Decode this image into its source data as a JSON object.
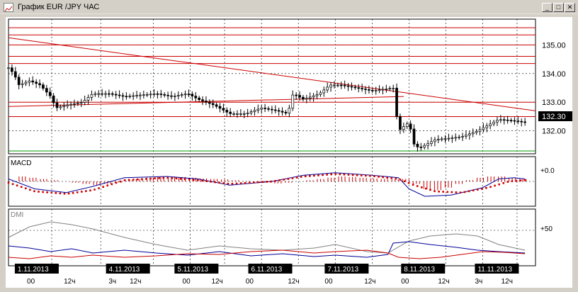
{
  "window": {
    "title": "График EUR /JPY ЧАС",
    "buttons": {
      "minimize": "_",
      "maximize": "□",
      "close": "✕"
    }
  },
  "price_panel": {
    "y_ticks": [
      "135.00",
      "134.00",
      "133.00",
      "132.00"
    ],
    "current_price": "132.30"
  },
  "macd_panel": {
    "label": "MACD",
    "y_tick": "+0.0"
  },
  "dmi_panel": {
    "label": "DMI",
    "y_tick": "+50"
  },
  "time_axis": {
    "dates": [
      "1.11.2013",
      "4.11.2013",
      "5.11.2013",
      "6.11.2013",
      "7.11.2013",
      "8.11.2013",
      "11.11.2013"
    ],
    "hours": [
      "00",
      "12ч",
      "3ч",
      "12ч",
      "00",
      "12ч",
      "00",
      "12ч",
      "00",
      "12ч",
      "00",
      "12ч",
      "3ч",
      "12ч"
    ]
  },
  "colors": {
    "line_red": "#cc0000",
    "line_green": "#009900",
    "candle": "#000000",
    "macd_dots": "#cc0000",
    "dmi_blue": "#000099",
    "dmi_red": "#cc0000",
    "dmi_gray": "#808080",
    "grid": "#000000"
  },
  "chart_data": [
    {
      "type": "candlestick",
      "title": "",
      "ylim": [
        131.2,
        135.9
      ],
      "horizontal_levels": [
        135.6,
        135.35,
        135.0,
        134.6,
        134.35,
        133.0,
        132.5,
        131.3
      ],
      "trendlines": [
        {
          "from": [
            0,
            135.25
          ],
          "to": [
            1,
            132.7
          ]
        },
        {
          "from": [
            0,
            132.85
          ],
          "to": [
            0.75,
            133.2
          ]
        }
      ],
      "close_series": [
        [
          0.0,
          134.2
        ],
        [
          0.01,
          134.0
        ],
        [
          0.02,
          133.6
        ],
        [
          0.04,
          133.75
        ],
        [
          0.06,
          133.6
        ],
        [
          0.08,
          133.2
        ],
        [
          0.09,
          132.8
        ],
        [
          0.11,
          132.9
        ],
        [
          0.14,
          133.0
        ],
        [
          0.16,
          133.3
        ],
        [
          0.19,
          133.3
        ],
        [
          0.22,
          133.2
        ],
        [
          0.25,
          133.25
        ],
        [
          0.28,
          133.3
        ],
        [
          0.31,
          133.2
        ],
        [
          0.34,
          133.3
        ],
        [
          0.36,
          133.1
        ],
        [
          0.39,
          132.9
        ],
        [
          0.42,
          132.6
        ],
        [
          0.45,
          132.6
        ],
        [
          0.48,
          132.8
        ],
        [
          0.51,
          132.7
        ],
        [
          0.53,
          132.6
        ],
        [
          0.54,
          133.3
        ],
        [
          0.56,
          133.1
        ],
        [
          0.59,
          133.3
        ],
        [
          0.61,
          133.6
        ],
        [
          0.63,
          133.6
        ],
        [
          0.66,
          133.5
        ],
        [
          0.69,
          133.4
        ],
        [
          0.71,
          133.45
        ],
        [
          0.73,
          133.5
        ],
        [
          0.74,
          132.0
        ],
        [
          0.76,
          132.3
        ],
        [
          0.77,
          131.5
        ],
        [
          0.78,
          131.4
        ],
        [
          0.81,
          131.7
        ],
        [
          0.84,
          131.75
        ],
        [
          0.86,
          131.8
        ],
        [
          0.89,
          132.0
        ],
        [
          0.91,
          132.2
        ],
        [
          0.93,
          132.4
        ],
        [
          0.96,
          132.35
        ],
        [
          0.98,
          132.3
        ]
      ]
    },
    {
      "type": "line",
      "title": "MACD",
      "ylim": [
        -1,
        1
      ],
      "series": [
        {
          "values": [
            [
              0.0,
              0.1
            ],
            [
              0.05,
              -0.3
            ],
            [
              0.11,
              -0.45
            ],
            [
              0.16,
              -0.2
            ],
            [
              0.22,
              0.15
            ],
            [
              0.3,
              0.2
            ],
            [
              0.36,
              0.1
            ],
            [
              0.42,
              -0.15
            ],
            [
              0.5,
              0.0
            ],
            [
              0.56,
              0.25
            ],
            [
              0.62,
              0.35
            ],
            [
              0.69,
              0.25
            ],
            [
              0.74,
              0.15
            ],
            [
              0.76,
              -0.3
            ],
            [
              0.79,
              -0.6
            ],
            [
              0.84,
              -0.55
            ],
            [
              0.9,
              -0.25
            ],
            [
              0.93,
              0.1
            ],
            [
              0.96,
              0.15
            ],
            [
              0.98,
              0.1
            ]
          ]
        },
        {
          "values": [
            [
              0.0,
              -0.05
            ],
            [
              0.05,
              -0.4
            ],
            [
              0.11,
              -0.5
            ],
            [
              0.16,
              -0.35
            ],
            [
              0.22,
              0.05
            ],
            [
              0.3,
              0.15
            ],
            [
              0.36,
              0.05
            ],
            [
              0.42,
              -0.1
            ],
            [
              0.5,
              0.0
            ],
            [
              0.56,
              0.2
            ],
            [
              0.62,
              0.3
            ],
            [
              0.69,
              0.22
            ],
            [
              0.74,
              0.1
            ],
            [
              0.77,
              -0.15
            ],
            [
              0.81,
              -0.4
            ],
            [
              0.86,
              -0.45
            ],
            [
              0.91,
              -0.25
            ],
            [
              0.95,
              0.0
            ],
            [
              0.98,
              0.05
            ]
          ]
        }
      ],
      "histogram": [
        0.2,
        0.15,
        0.1,
        0.05,
        0.0,
        -0.05,
        -0.1,
        -0.15,
        -0.1,
        -0.05,
        0.05,
        0.1,
        0.15,
        0.2,
        0.2,
        0.18,
        0.15,
        0.12,
        0.1,
        0.08,
        0.05,
        0.02,
        -0.02,
        -0.05,
        -0.08,
        -0.05,
        0.0,
        0.05,
        0.1,
        0.15,
        0.2,
        0.18,
        0.15,
        0.12,
        0.1,
        0.08,
        0.1,
        -0.1,
        -0.3,
        -0.35,
        -0.25,
        -0.1,
        0.05,
        0.15,
        0.2,
        0.2,
        0.15,
        0.1
      ]
    },
    {
      "type": "line",
      "title": "DMI",
      "ylim": [
        0,
        80
      ],
      "series": [
        {
          "values": [
            [
              0.0,
              40
            ],
            [
              0.04,
              55
            ],
            [
              0.08,
              62
            ],
            [
              0.12,
              58
            ],
            [
              0.16,
              52
            ],
            [
              0.22,
              40
            ],
            [
              0.28,
              30
            ],
            [
              0.34,
              22
            ],
            [
              0.4,
              28
            ],
            [
              0.46,
              24
            ],
            [
              0.52,
              22
            ],
            [
              0.58,
              25
            ],
            [
              0.62,
              30
            ],
            [
              0.68,
              20
            ],
            [
              0.72,
              18
            ],
            [
              0.76,
              35
            ],
            [
              0.8,
              42
            ],
            [
              0.85,
              45
            ],
            [
              0.89,
              42
            ],
            [
              0.93,
              30
            ],
            [
              0.98,
              22
            ]
          ]
        },
        {
          "values": [
            [
              0.0,
              28
            ],
            [
              0.04,
              25
            ],
            [
              0.08,
              20
            ],
            [
              0.12,
              24
            ],
            [
              0.16,
              18
            ],
            [
              0.22,
              22
            ],
            [
              0.28,
              18
            ],
            [
              0.34,
              15
            ],
            [
              0.4,
              20
            ],
            [
              0.46,
              14
            ],
            [
              0.52,
              17
            ],
            [
              0.58,
              13
            ],
            [
              0.62,
              15
            ],
            [
              0.68,
              12
            ],
            [
              0.72,
              16
            ],
            [
              0.73,
              32
            ],
            [
              0.76,
              34
            ],
            [
              0.8,
              30
            ],
            [
              0.85,
              26
            ],
            [
              0.89,
              22
            ],
            [
              0.93,
              20
            ],
            [
              0.98,
              18
            ]
          ]
        },
        {
          "values": [
            [
              0.0,
              12
            ],
            [
              0.04,
              10
            ],
            [
              0.08,
              14
            ],
            [
              0.12,
              12
            ],
            [
              0.16,
              15
            ],
            [
              0.22,
              12
            ],
            [
              0.28,
              14
            ],
            [
              0.34,
              17
            ],
            [
              0.4,
              16
            ],
            [
              0.46,
              20
            ],
            [
              0.52,
              22
            ],
            [
              0.58,
              18
            ],
            [
              0.62,
              20
            ],
            [
              0.68,
              22
            ],
            [
              0.72,
              18
            ],
            [
              0.74,
              12
            ],
            [
              0.78,
              10
            ],
            [
              0.82,
              12
            ],
            [
              0.86,
              16
            ],
            [
              0.9,
              20
            ],
            [
              0.94,
              19
            ],
            [
              0.98,
              17
            ]
          ]
        }
      ]
    }
  ]
}
